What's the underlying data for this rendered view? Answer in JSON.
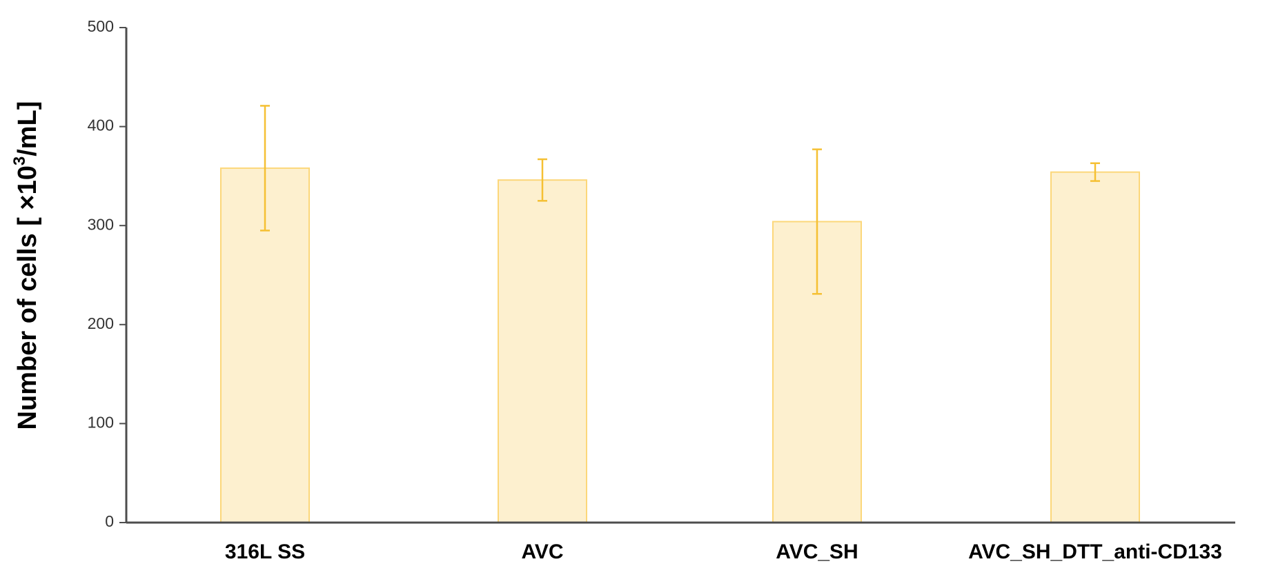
{
  "chart_data": {
    "type": "bar",
    "categories": [
      "316L SS",
      "AVC",
      "AVC_SH",
      "AVC_SH_DTT_anti-CD133"
    ],
    "values": [
      358,
      346,
      304,
      354
    ],
    "error": [
      63,
      21,
      73,
      9
    ],
    "ylabel_main": "Number of cells [ ×10",
    "ylabel_sup": "3",
    "ylabel_end": "/mL]",
    "ylim": [
      0,
      500
    ],
    "yticks": [
      0,
      100,
      200,
      300,
      400,
      500
    ],
    "grid": false,
    "legend": "none",
    "colors": {
      "bar_fill": "#fdf0cf",
      "bar_stroke": "#fcd77a",
      "error_bar": "#f5c033"
    }
  }
}
